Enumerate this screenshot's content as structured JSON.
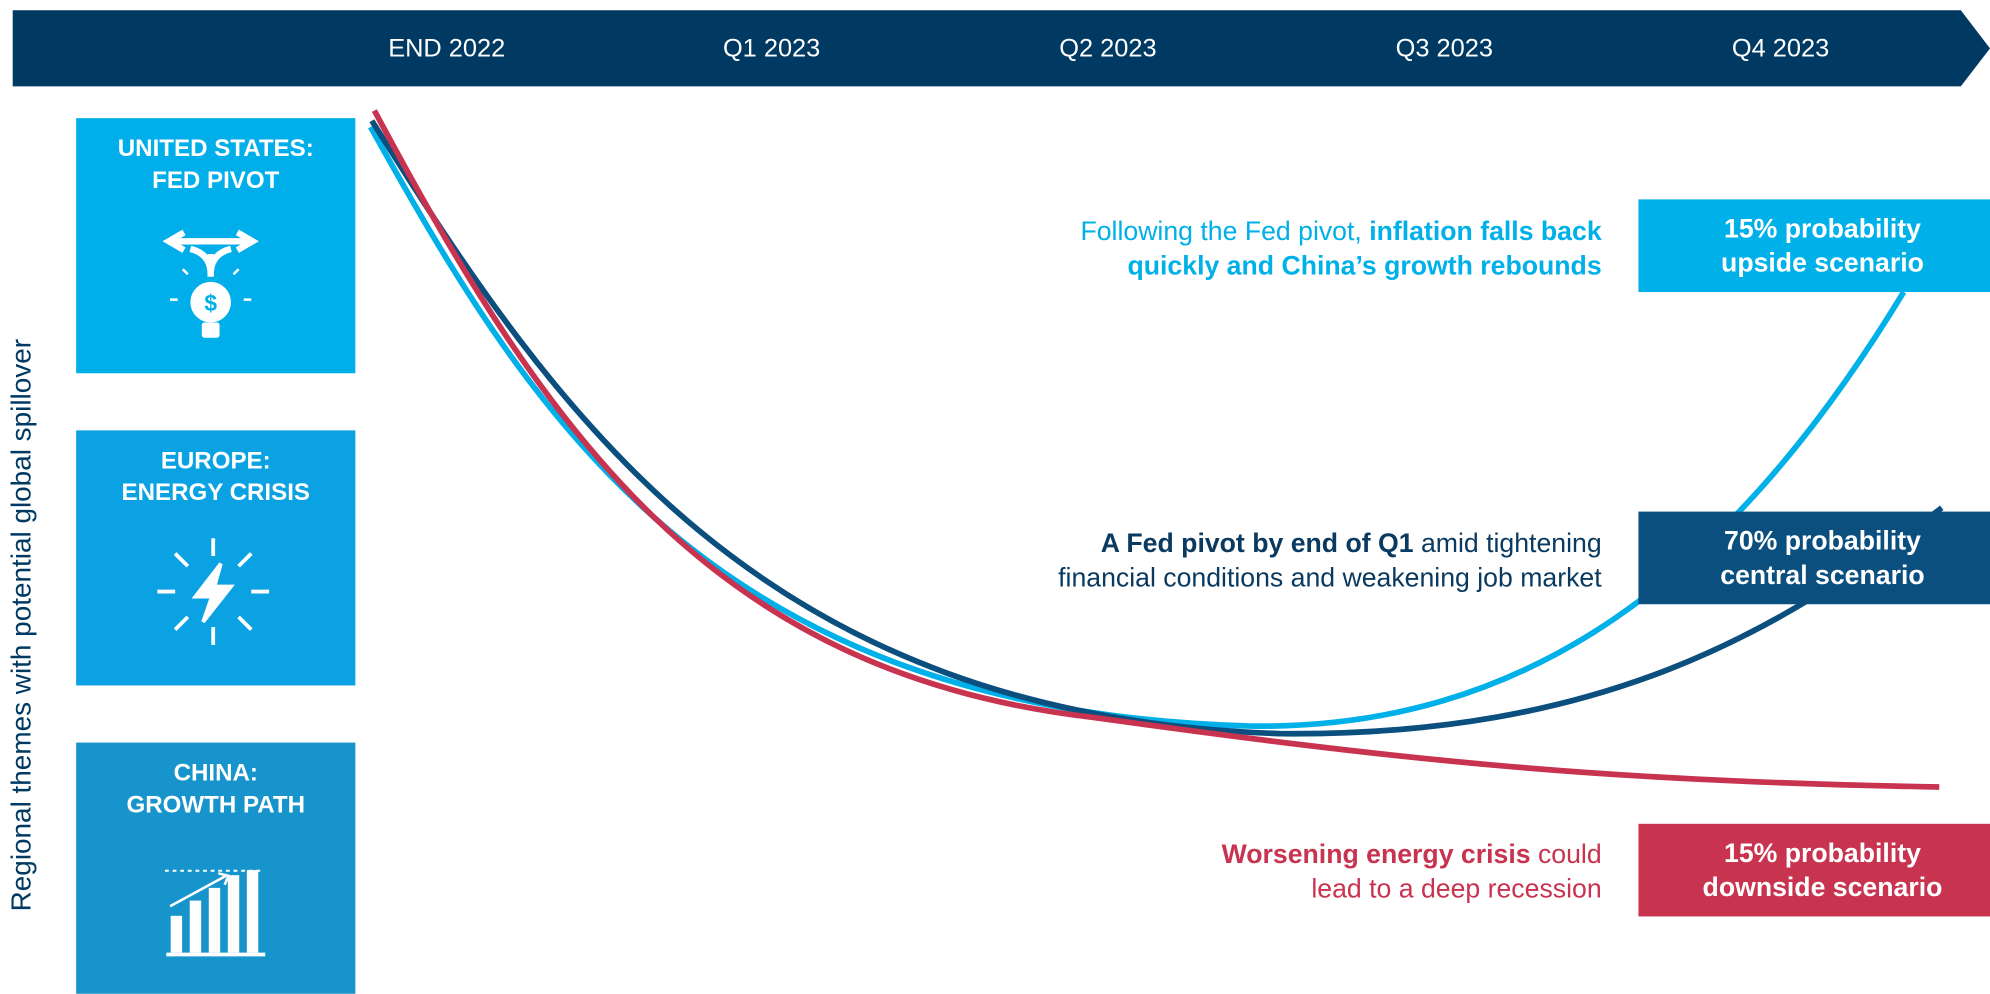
{
  "timeline": [
    "END 2022",
    "Q1 2023",
    "Q2 2023",
    "Q3 2023",
    "Q4 2023"
  ],
  "side_label": "Regional themes with potential global spillover",
  "themes": [
    {
      "lines": [
        "UNITED STATES:",
        "FED PIVOT"
      ]
    },
    {
      "lines": [
        "EUROPE:",
        "ENERGY CRISIS"
      ]
    },
    {
      "lines": [
        "CHINA:",
        "GROWTH PATH"
      ]
    }
  ],
  "scenarios": [
    {
      "description": [
        [
          {
            "text": "Following the Fed pivot, ",
            "strong": false
          },
          {
            "text": "inflation falls back",
            "strong": true
          }
        ],
        [
          {
            "text": "quickly and China’s growth rebounds",
            "strong": true
          }
        ]
      ],
      "probability": [
        "15% probability",
        "upside scenario"
      ]
    },
    {
      "description": [
        [
          {
            "text": "A Fed pivot by end of Q1",
            "strong": true
          },
          {
            "text": " amid tightening",
            "strong": false
          }
        ],
        [
          {
            "text": "financial conditions and weakening job market",
            "strong": false
          }
        ]
      ],
      "probability": [
        "70% probability",
        "central scenario"
      ]
    },
    {
      "description": [
        [
          {
            "text": "Worsening energy crisis",
            "strong": true
          },
          {
            "text": " could",
            "strong": false
          }
        ],
        [
          {
            "text": "lead to a deep recession",
            "strong": false
          }
        ]
      ],
      "probability": [
        "15% probability",
        "downside scenario"
      ]
    }
  ]
}
